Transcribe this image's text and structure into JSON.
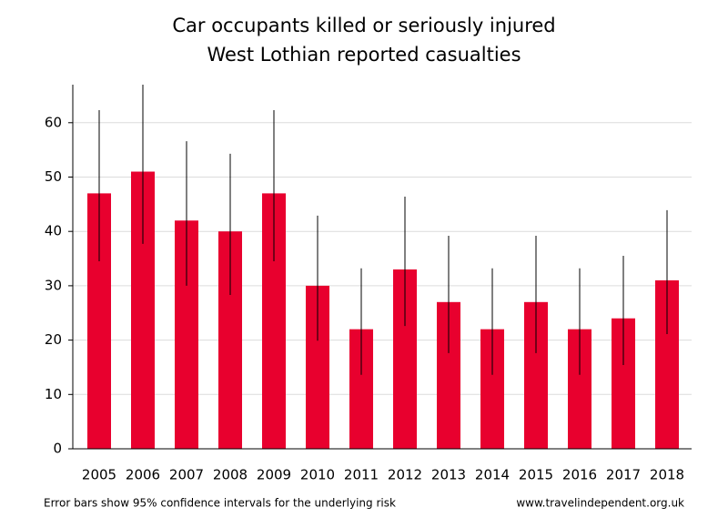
{
  "chart_data": {
    "type": "bar",
    "title": "Car occupants killed or seriously injured",
    "subtitle": "West Lothian reported casualties",
    "note": "Error bars show 95% confidence intervals for the underlying risk",
    "source": "www.travelindependent.org.uk",
    "categories": [
      "2005",
      "2006",
      "2007",
      "2008",
      "2009",
      "2010",
      "2011",
      "2012",
      "2013",
      "2014",
      "2015",
      "2016",
      "2017",
      "2018"
    ],
    "values": [
      47,
      51,
      42,
      40,
      47,
      30,
      22,
      33,
      27,
      22,
      27,
      22,
      24,
      31
    ],
    "lower": [
      34.5,
      37.7,
      30.0,
      28.3,
      34.5,
      19.9,
      13.6,
      22.6,
      17.6,
      13.6,
      17.6,
      13.6,
      15.4,
      21.1
    ],
    "upper": [
      62.3,
      67,
      56.6,
      54.3,
      62.3,
      42.9,
      33.2,
      46.4,
      39.2,
      33.2,
      39.2,
      33.2,
      35.5,
      43.9
    ],
    "color": "#e8002e",
    "ylim": [
      0,
      67
    ],
    "yticks": [
      0,
      10,
      20,
      30,
      40,
      50,
      60
    ],
    "grid": true
  }
}
